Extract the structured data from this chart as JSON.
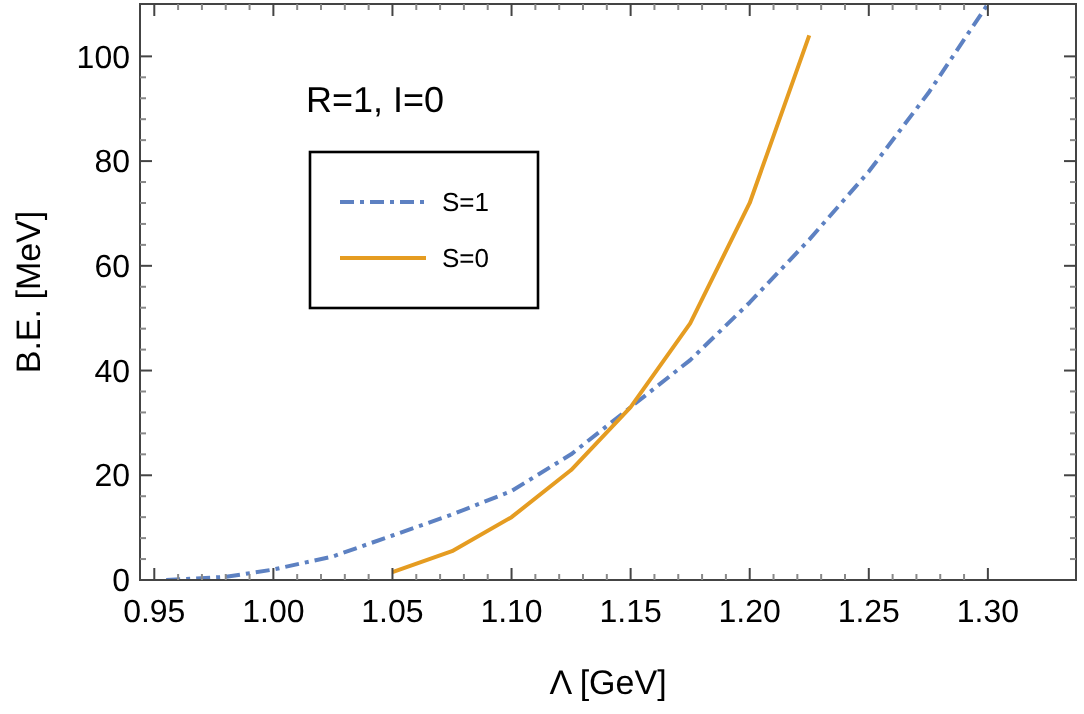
{
  "chart_data": {
    "type": "line",
    "xlabel": "Λ [GeV]",
    "ylabel": "B.E. [MeV]",
    "annotations": [
      "R=1, I=0"
    ],
    "xlim": [
      0.944,
      1.337
    ],
    "ylim": [
      0,
      110
    ],
    "xticks": [
      {
        "value": 0.95,
        "label": "0.95"
      },
      {
        "value": 1.0,
        "label": "1.00"
      },
      {
        "value": 1.05,
        "label": "1.05"
      },
      {
        "value": 1.1,
        "label": "1.10"
      },
      {
        "value": 1.15,
        "label": "1.15"
      },
      {
        "value": 1.2,
        "label": "1.20"
      },
      {
        "value": 1.25,
        "label": "1.25"
      },
      {
        "value": 1.3,
        "label": "1.30"
      }
    ],
    "yticks": [
      0,
      20,
      40,
      60,
      80,
      100
    ],
    "legend": "top left",
    "grid": false,
    "series": [
      {
        "name": "S=1",
        "color": "#5d81c2",
        "line_style": "dashed",
        "x": [
          0.955,
          0.98,
          1.0,
          1.025,
          1.05,
          1.075,
          1.1,
          1.125,
          1.15,
          1.175,
          1.2,
          1.225,
          1.25,
          1.275,
          1.3
        ],
        "values": [
          0,
          0.6,
          2,
          4.5,
          8.5,
          12.5,
          17,
          24,
          33,
          42,
          53,
          65,
          78,
          93,
          110
        ]
      },
      {
        "name": "S=0",
        "color": "#e59c21",
        "line_style": "solid",
        "x": [
          1.05,
          1.075,
          1.1,
          1.125,
          1.15,
          1.175,
          1.2,
          1.225
        ],
        "values": [
          1.5,
          5.5,
          12,
          21,
          33,
          49,
          72,
          104
        ]
      }
    ]
  }
}
